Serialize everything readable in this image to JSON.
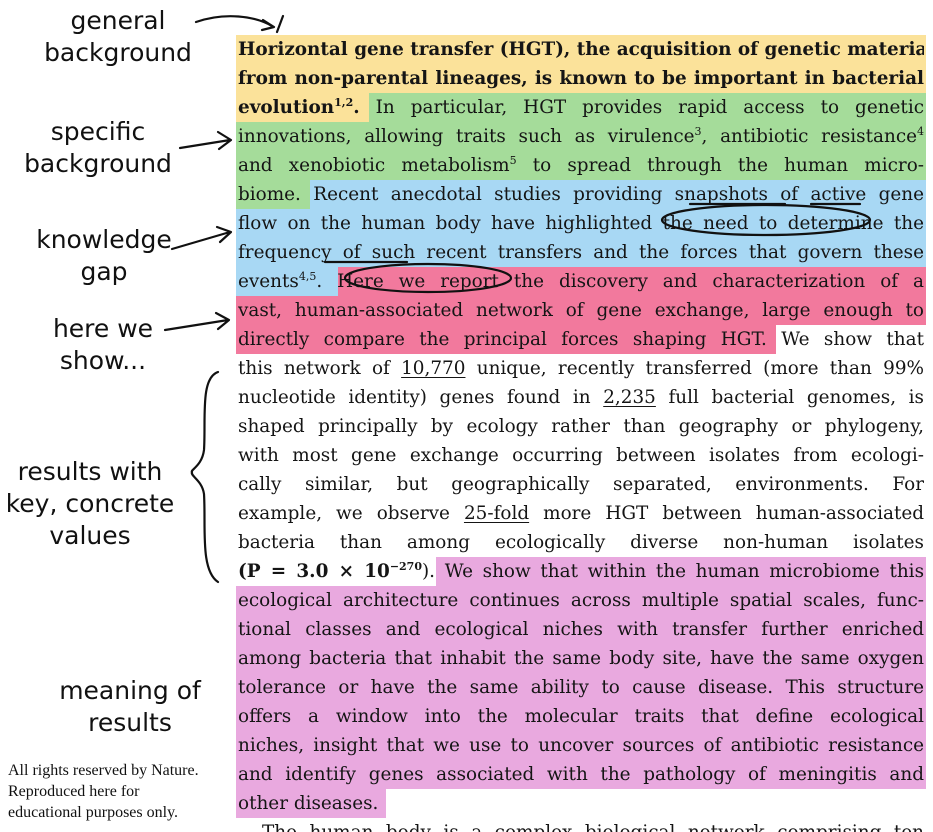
{
  "colors": {
    "yellow": "#fbe29a",
    "green": "#a5dc9a",
    "blue": "#a8d8f4",
    "red": "#f2799d",
    "purple": "#e9a9df",
    "ink": "#151515"
  },
  "annotations": {
    "general_background": [
      "general",
      "background"
    ],
    "specific_background": [
      "specific",
      "background"
    ],
    "knowledge_gap": [
      "knowledge",
      "gap"
    ],
    "here_we_show": [
      "here we",
      "show..."
    ],
    "results": [
      "results with",
      "key, concrete",
      "values"
    ],
    "meaning": [
      "meaning of",
      "results"
    ]
  },
  "copyright": [
    "All rights reserved by Nature.",
    "Reproduced here for",
    "educational purposes only."
  ],
  "text": {
    "l1": "Horizontal gene transfer (HGT), the acquisition of genetic material",
    "l2": "from non-parental lineages, is known to be important in bacterial",
    "l3a": "evolution",
    "l3sup": "1,2",
    "l3b": ".",
    "l3c": " In particular, HGT provides rapid access to genetic",
    "l4a": "innovations, allowing traits such as virulence",
    "l4sup1": "3",
    "l4b": ", antibiotic resistance",
    "l4sup2": "4",
    "l5a": "and xenobiotic metabolism",
    "l5sup": "5",
    "l5b": " to spread through the human micro-",
    "l6a": "biome.",
    "l6b": " Recent anecdotal studies providing snapshots of active gene",
    "l7a": "flow on the human body have highlighted ",
    "l7b": "the need to determine",
    "l7c": " the",
    "l8": "frequency of such recent transfers and the forces that govern these",
    "l9a": "events",
    "l9sup": "4,5",
    "l9b": ". ",
    "l9c": "Here we report",
    "l9d": " the discovery and characterization of a",
    "l10": "vast, human-associated network of gene exchange, large enough to",
    "l11a": "directly compare the principal forces shaping HGT.",
    "l11b": " We show that",
    "l12a": "this network of ",
    "l12b": "10,770",
    "l12c": " unique, recently transferred (more than 99%",
    "l13a": "nucleotide identity) genes found in ",
    "l13b": "2,235",
    "l13c": " full bacterial genomes, is",
    "l14": "shaped principally by ecology rather than geography or phylogeny,",
    "l15": "with most gene exchange occurring between isolates from ecologi-",
    "l16": "cally similar, but geographically separated, environments. For",
    "l17a": "example, we observe ",
    "l17b": "25-fold",
    "l17c": " more HGT between human-associated",
    "l18": "bacteria than among ecologically diverse non-human isolates",
    "l19a": "(P = 3.0 × 10",
    "l19sup": "−270",
    "l19b": ").",
    "l19c": " We show that within the human microbiome this",
    "l20": "ecological architecture continues across multiple spatial scales, func-",
    "l21": "tional classes and ecological niches with transfer further enriched",
    "l22": "among bacteria that inhabit the same body site, have the same oxygen",
    "l23a": "tolerance or have the same ability to cause disease.",
    "l23b": " This structure",
    "l24": "offers a window into the molecular traits that define ecological",
    "l25": "niches, insight that we use to uncover sources of antibiotic resistance",
    "l26": "and identify genes associated with the pathology of meningitis and",
    "l27": "other diseases.",
    "l28": "The human body is a complex biological network comprising ten"
  }
}
